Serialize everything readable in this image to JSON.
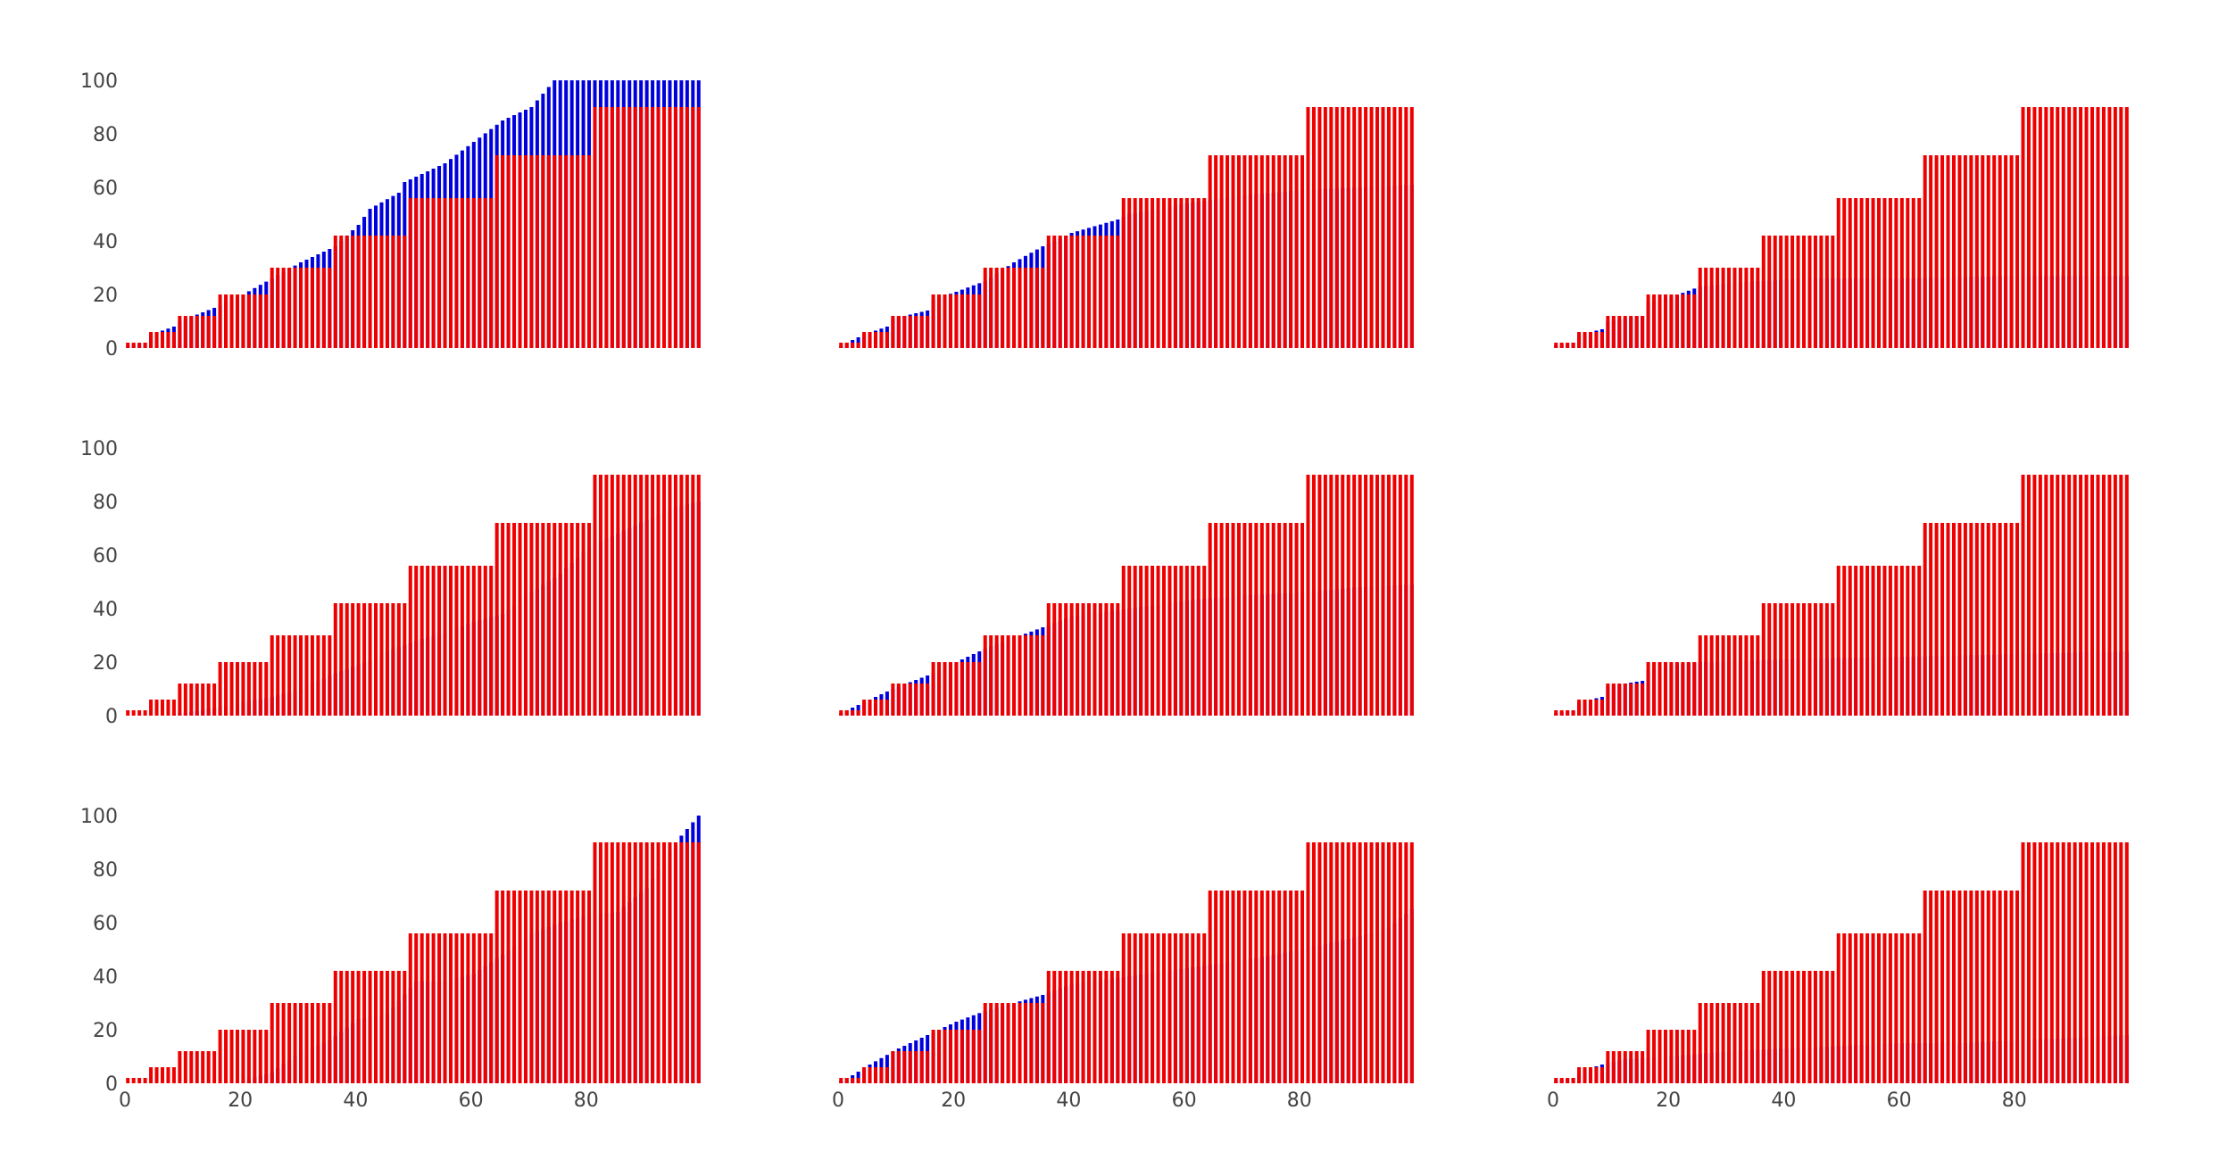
{
  "colors": {
    "series_1": "#0000dd",
    "series_2": "#ee0000"
  },
  "chart_data": [
    {
      "type": "bar",
      "barmode": "overlay",
      "x": {
        "range": [
          0,
          99
        ]
      },
      "ylim": [
        0,
        100
      ],
      "show_yticks": true,
      "show_xticks": false,
      "series": [
        {
          "color": "#0000dd",
          "y_points": [
            [
              0,
              1
            ],
            [
              3,
              2
            ],
            [
              4,
              5
            ],
            [
              8,
              8
            ],
            [
              9,
              10
            ],
            [
              15,
              15
            ],
            [
              20,
              20
            ],
            [
              25,
              26
            ],
            [
              30,
              32
            ],
            [
              34,
              36
            ],
            [
              36,
              38
            ],
            [
              40,
              46
            ],
            [
              42,
              52
            ],
            [
              47,
              58
            ],
            [
              48,
              62
            ],
            [
              55,
              69
            ],
            [
              60,
              77
            ],
            [
              65,
              85
            ],
            [
              70,
              90
            ],
            [
              74,
              100
            ],
            [
              99,
              100
            ]
          ]
        },
        {
          "color": "#ee0000",
          "step_levels": [
            [
              0,
              2
            ],
            [
              4,
              6
            ],
            [
              9,
              12
            ],
            [
              16,
              20
            ],
            [
              25,
              30
            ],
            [
              36,
              42
            ],
            [
              49,
              56
            ],
            [
              64,
              72
            ],
            [
              81,
              90
            ]
          ]
        }
      ]
    },
    {
      "type": "bar",
      "barmode": "overlay",
      "x": {
        "range": [
          0,
          99
        ]
      },
      "ylim": [
        0,
        100
      ],
      "show_yticks": false,
      "show_xticks": false,
      "series": [
        {
          "color": "#0000dd",
          "y_points": [
            [
              0,
              1
            ],
            [
              4,
              5
            ],
            [
              8,
              8
            ],
            [
              9,
              11
            ],
            [
              15,
              14
            ],
            [
              16,
              18
            ],
            [
              20,
              21
            ],
            [
              25,
              25
            ],
            [
              30,
              32
            ],
            [
              35,
              38
            ],
            [
              40,
              43
            ],
            [
              48,
              48
            ],
            [
              50,
              50
            ],
            [
              60,
              54
            ],
            [
              70,
              57
            ],
            [
              80,
              59
            ],
            [
              90,
              60
            ],
            [
              99,
              61
            ]
          ]
        },
        {
          "color": "#ee0000",
          "step_levels": [
            [
              0,
              2
            ],
            [
              4,
              6
            ],
            [
              9,
              12
            ],
            [
              16,
              20
            ],
            [
              25,
              30
            ],
            [
              36,
              42
            ],
            [
              49,
              56
            ],
            [
              64,
              72
            ],
            [
              81,
              90
            ]
          ]
        }
      ]
    },
    {
      "type": "bar",
      "barmode": "overlay",
      "x": {
        "range": [
          0,
          99
        ]
      },
      "ylim": [
        0,
        100
      ],
      "show_yticks": false,
      "show_xticks": false,
      "series": [
        {
          "color": "#0000dd",
          "y_points": [
            [
              0,
              1
            ],
            [
              3,
              2
            ],
            [
              4,
              5
            ],
            [
              8,
              7
            ],
            [
              9,
              10
            ],
            [
              15,
              12
            ],
            [
              16,
              17
            ],
            [
              20,
              19
            ],
            [
              25,
              23
            ],
            [
              35,
              25
            ],
            [
              45,
              26
            ],
            [
              60,
              26
            ],
            [
              80,
              27
            ],
            [
              99,
              27
            ]
          ]
        },
        {
          "color": "#ee0000",
          "step_levels": [
            [
              0,
              2
            ],
            [
              4,
              6
            ],
            [
              9,
              12
            ],
            [
              16,
              20
            ],
            [
              25,
              30
            ],
            [
              36,
              42
            ],
            [
              49,
              56
            ],
            [
              64,
              72
            ],
            [
              81,
              90
            ]
          ]
        }
      ]
    },
    {
      "type": "bar",
      "barmode": "overlay",
      "x": {
        "range": [
          0,
          99
        ]
      },
      "ylim": [
        0,
        100
      ],
      "show_yticks": true,
      "show_xticks": false,
      "series": [
        {
          "color": "#0000dd",
          "y_points": [
            [
              0,
              0
            ],
            [
              5,
              0
            ],
            [
              10,
              1
            ],
            [
              15,
              3
            ],
            [
              20,
              5
            ],
            [
              25,
              7
            ],
            [
              30,
              10
            ],
            [
              35,
              15
            ],
            [
              40,
              19
            ],
            [
              45,
              24
            ],
            [
              50,
              28
            ],
            [
              55,
              31
            ],
            [
              60,
              35
            ],
            [
              65,
              38
            ],
            [
              70,
              46
            ],
            [
              75,
              53
            ],
            [
              80,
              63
            ],
            [
              85,
              68
            ],
            [
              90,
              73
            ],
            [
              95,
              78
            ],
            [
              99,
              80
            ]
          ]
        },
        {
          "color": "#ee0000",
          "step_levels": [
            [
              0,
              2
            ],
            [
              4,
              6
            ],
            [
              9,
              12
            ],
            [
              16,
              20
            ],
            [
              25,
              30
            ],
            [
              36,
              42
            ],
            [
              49,
              56
            ],
            [
              64,
              72
            ],
            [
              81,
              90
            ]
          ]
        }
      ]
    },
    {
      "type": "bar",
      "barmode": "overlay",
      "x": {
        "range": [
          0,
          99
        ]
      },
      "ylim": [
        0,
        100
      ],
      "show_yticks": false,
      "show_xticks": false,
      "series": [
        {
          "color": "#0000dd",
          "y_points": [
            [
              0,
              1
            ],
            [
              4,
              5
            ],
            [
              9,
              10
            ],
            [
              15,
              15
            ],
            [
              20,
              20
            ],
            [
              25,
              25
            ],
            [
              30,
              29
            ],
            [
              35,
              33
            ],
            [
              40,
              37
            ],
            [
              50,
              40
            ],
            [
              60,
              43
            ],
            [
              70,
              45
            ],
            [
              80,
              46
            ],
            [
              90,
              48
            ],
            [
              99,
              49
            ]
          ]
        },
        {
          "color": "#ee0000",
          "step_levels": [
            [
              0,
              2
            ],
            [
              4,
              6
            ],
            [
              9,
              12
            ],
            [
              16,
              20
            ],
            [
              25,
              30
            ],
            [
              36,
              42
            ],
            [
              49,
              56
            ],
            [
              64,
              72
            ],
            [
              81,
              90
            ]
          ]
        }
      ]
    },
    {
      "type": "bar",
      "barmode": "overlay",
      "x": {
        "range": [
          0,
          99
        ]
      },
      "ylim": [
        0,
        100
      ],
      "show_yticks": false,
      "show_xticks": false,
      "series": [
        {
          "color": "#0000dd",
          "y_points": [
            [
              0,
              1
            ],
            [
              3,
              2
            ],
            [
              4,
              5
            ],
            [
              8,
              7
            ],
            [
              9,
              11
            ],
            [
              15,
              13
            ],
            [
              16,
              17
            ],
            [
              20,
              19
            ],
            [
              25,
              20
            ],
            [
              40,
              21
            ],
            [
              60,
              22
            ],
            [
              80,
              23
            ],
            [
              99,
              24
            ]
          ]
        },
        {
          "color": "#ee0000",
          "step_levels": [
            [
              0,
              2
            ],
            [
              4,
              6
            ],
            [
              9,
              12
            ],
            [
              16,
              20
            ],
            [
              25,
              30
            ],
            [
              36,
              42
            ],
            [
              49,
              56
            ],
            [
              64,
              72
            ],
            [
              81,
              90
            ]
          ]
        }
      ]
    },
    {
      "type": "bar",
      "barmode": "overlay",
      "x": {
        "range": [
          0,
          99
        ]
      },
      "ylim": [
        0,
        100
      ],
      "show_yticks": true,
      "show_xticks": true,
      "series": [
        {
          "color": "#0000dd",
          "y_points": [
            [
              0,
              0
            ],
            [
              17,
              0
            ],
            [
              20,
              1
            ],
            [
              25,
              4
            ],
            [
              30,
              12
            ],
            [
              35,
              16
            ],
            [
              40,
              24
            ],
            [
              45,
              26
            ],
            [
              50,
              38
            ],
            [
              55,
              38
            ],
            [
              60,
              41
            ],
            [
              65,
              48
            ],
            [
              70,
              56
            ],
            [
              75,
              60
            ],
            [
              80,
              63
            ],
            [
              85,
              64
            ],
            [
              90,
              73
            ],
            [
              95,
              90
            ],
            [
              99,
              100
            ]
          ]
        },
        {
          "color": "#ee0000",
          "step_levels": [
            [
              0,
              2
            ],
            [
              4,
              6
            ],
            [
              9,
              12
            ],
            [
              16,
              20
            ],
            [
              25,
              30
            ],
            [
              36,
              42
            ],
            [
              49,
              56
            ],
            [
              64,
              72
            ],
            [
              81,
              90
            ]
          ]
        }
      ]
    },
    {
      "type": "bar",
      "barmode": "overlay",
      "x": {
        "range": [
          0,
          99
        ]
      },
      "ylim": [
        0,
        100
      ],
      "show_yticks": false,
      "show_xticks": true,
      "series": [
        {
          "color": "#0000dd",
          "y_points": [
            [
              0,
              1
            ],
            [
              2,
              3
            ],
            [
              5,
              7
            ],
            [
              10,
              13
            ],
            [
              15,
              18
            ],
            [
              20,
              23
            ],
            [
              25,
              27
            ],
            [
              30,
              30
            ],
            [
              35,
              33
            ],
            [
              40,
              37
            ],
            [
              50,
              40
            ],
            [
              60,
              43
            ],
            [
              70,
              46
            ],
            [
              80,
              50
            ],
            [
              90,
              55
            ],
            [
              95,
              58
            ],
            [
              99,
              65
            ]
          ]
        },
        {
          "color": "#ee0000",
          "step_levels": [
            [
              0,
              2
            ],
            [
              4,
              6
            ],
            [
              9,
              12
            ],
            [
              16,
              20
            ],
            [
              25,
              30
            ],
            [
              36,
              42
            ],
            [
              49,
              56
            ],
            [
              64,
              72
            ],
            [
              81,
              90
            ]
          ]
        }
      ]
    },
    {
      "type": "bar",
      "barmode": "overlay",
      "x": {
        "range": [
          0,
          99
        ]
      },
      "ylim": [
        0,
        100
      ],
      "show_yticks": false,
      "show_xticks": true,
      "series": [
        {
          "color": "#0000dd",
          "y_points": [
            [
              0,
              1
            ],
            [
              3,
              2
            ],
            [
              5,
              5
            ],
            [
              8,
              7
            ],
            [
              12,
              9
            ],
            [
              20,
              10
            ],
            [
              30,
              12
            ],
            [
              40,
              13
            ],
            [
              50,
              14
            ],
            [
              60,
              15
            ],
            [
              70,
              15
            ],
            [
              80,
              16
            ],
            [
              90,
              17
            ],
            [
              99,
              18
            ]
          ]
        },
        {
          "color": "#ee0000",
          "step_levels": [
            [
              0,
              2
            ],
            [
              4,
              6
            ],
            [
              9,
              12
            ],
            [
              16,
              20
            ],
            [
              25,
              30
            ],
            [
              36,
              42
            ],
            [
              49,
              56
            ],
            [
              64,
              72
            ],
            [
              81,
              90
            ]
          ]
        }
      ]
    }
  ],
  "y_tick_labels": [
    "0",
    "20",
    "40",
    "60",
    "80",
    "100"
  ],
  "x_tick_labels": [
    "0",
    "20",
    "40",
    "60",
    "80"
  ]
}
